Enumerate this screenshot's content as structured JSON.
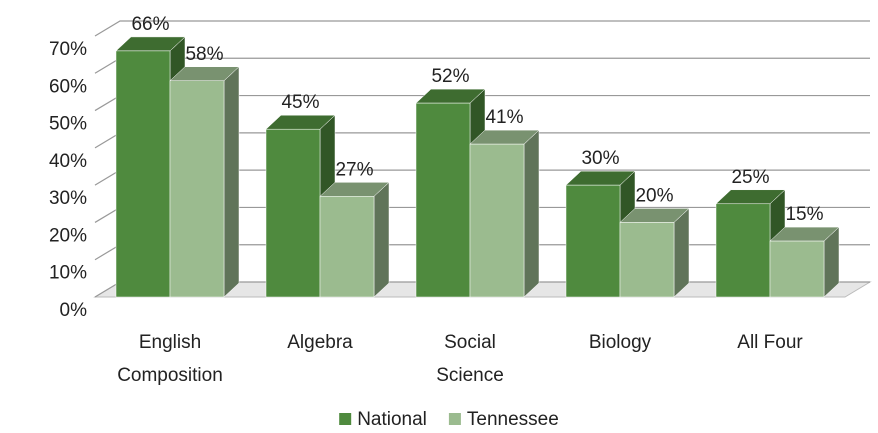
{
  "chart_data": {
    "type": "bar3d",
    "categories": [
      "English Composition",
      "Algebra",
      "Social Science",
      "Biology",
      "All Four"
    ],
    "series": [
      {
        "name": "National",
        "color": "#4f8a3e",
        "values": [
          66,
          45,
          52,
          30,
          25
        ],
        "value_labels": [
          "66%",
          "45%",
          "52%",
          "30%",
          "25%"
        ]
      },
      {
        "name": "Tennessee",
        "color": "#9bbb8f",
        "values": [
          58,
          27,
          41,
          20,
          15
        ],
        "value_labels": [
          "58%",
          "27%",
          "41%",
          "20%",
          "15%"
        ]
      }
    ],
    "ylim": [
      0,
      70
    ],
    "yticks": [
      {
        "value": 0,
        "label": "0%"
      },
      {
        "value": 10,
        "label": "10%"
      },
      {
        "value": 20,
        "label": "20%"
      },
      {
        "value": 30,
        "label": "30%"
      },
      {
        "value": 40,
        "label": "40%"
      },
      {
        "value": 50,
        "label": "50%"
      },
      {
        "value": 60,
        "label": "60%"
      },
      {
        "value": 70,
        "label": "70%"
      }
    ],
    "grid": true,
    "legend": "bottom"
  }
}
